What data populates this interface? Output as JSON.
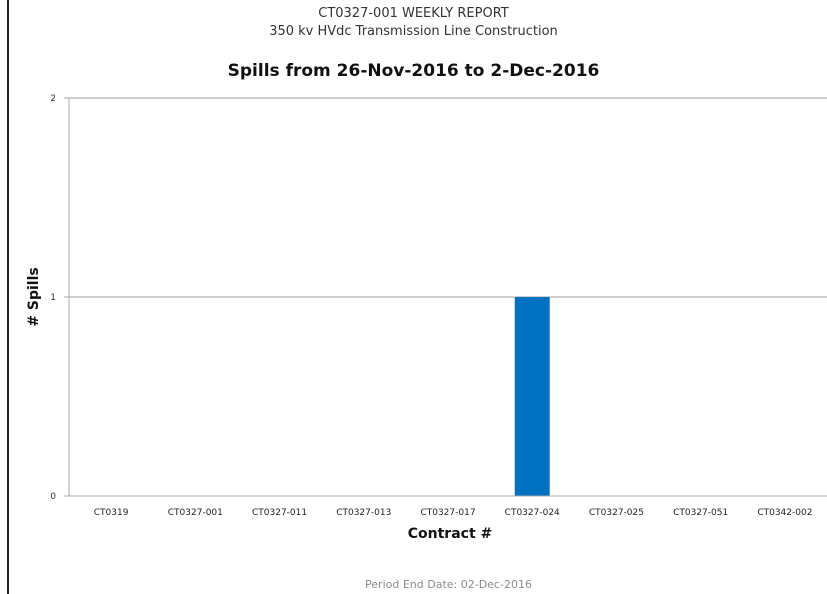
{
  "report": {
    "title": "CT0327-001 WEEKLY REPORT",
    "subtitle": "350 kv HVdc Transmission Line Construction"
  },
  "footer": {
    "period_label": "Period End Date: 02-Dec-2016"
  },
  "chart_data": {
    "type": "bar",
    "title": "Spills from 26-Nov-2016 to 2-Dec-2016",
    "xlabel": "Contract #",
    "ylabel": "# Spills",
    "ylim": [
      0,
      2
    ],
    "yticks": [
      0,
      1,
      2
    ],
    "grid": "horizontal",
    "legend": "none",
    "categories": [
      "CT0319",
      "CT0327-001",
      "CT0327-011",
      "CT0327-013",
      "CT0327-017",
      "CT0327-024",
      "CT0327-025",
      "CT0327-051",
      "CT0342-002"
    ],
    "values": [
      0,
      0,
      0,
      0,
      0,
      1,
      0,
      0,
      0
    ],
    "bar_color": "#0070c0"
  }
}
